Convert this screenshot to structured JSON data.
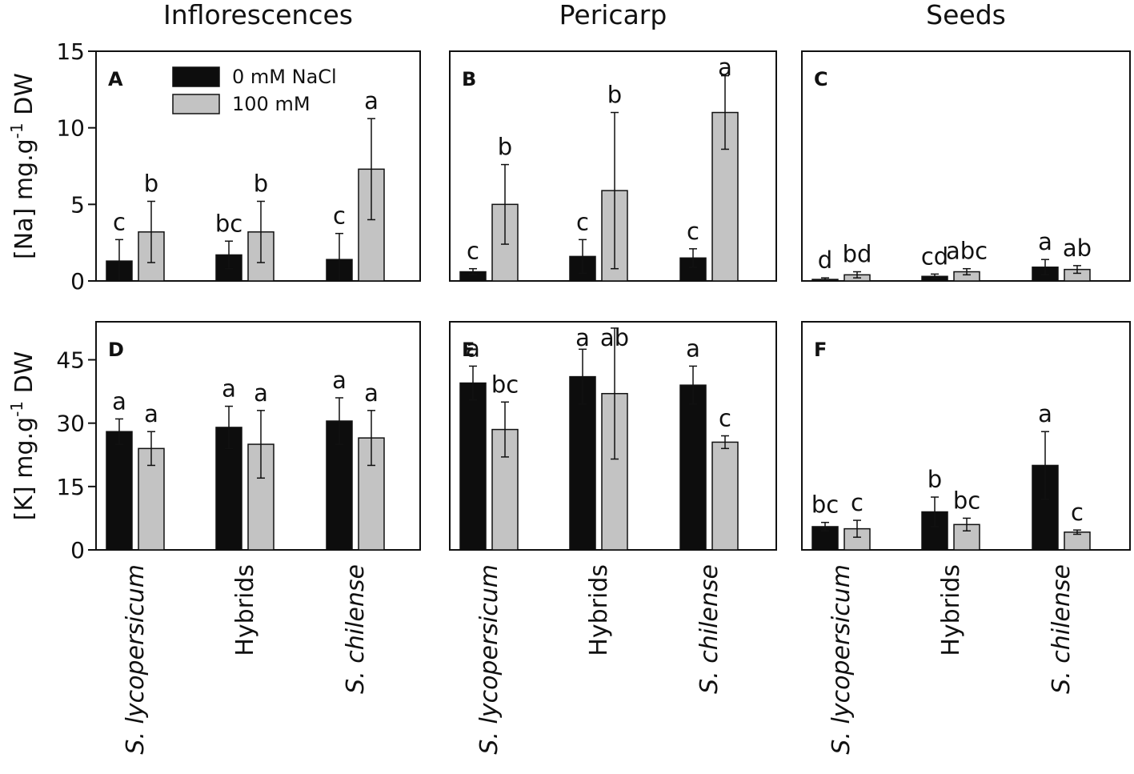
{
  "column_titles": [
    "Inflorescences",
    "Pericarp",
    "Seeds"
  ],
  "legend": [
    "0 mM NaCl",
    "100 mM"
  ],
  "colors": {
    "control": "#0d0d0d",
    "salt": "#c3c3c3",
    "frame": "#111111"
  },
  "categories": [
    {
      "label": "S. lycopersicum",
      "italic": true
    },
    {
      "label": "Hybrids",
      "italic": false
    },
    {
      "label": "S. chilense",
      "italic": true
    }
  ],
  "rows": [
    {
      "ylabel_main": "[Na] mg.g",
      "ylabel_sup": "-1",
      "ylabel_tail": " DW",
      "yticks": [
        "0",
        "5",
        "10",
        "15"
      ]
    },
    {
      "ylabel_main": "[K] mg.g",
      "ylabel_sup": "-1",
      "ylabel_tail": " DW",
      "yticks": [
        "0",
        "15",
        "30",
        "45"
      ]
    }
  ],
  "chart_data": [
    {
      "panel": "A",
      "type": "bar",
      "title": "Inflorescences",
      "ylabel": "[Na] mg.g-1 DW",
      "ylim": [
        0,
        15
      ],
      "yticks": [
        0,
        5,
        10,
        15
      ],
      "categories": [
        "S. lycopersicum",
        "Hybrids",
        "S. chilense"
      ],
      "series": [
        {
          "name": "0 mM NaCl",
          "values": [
            1.3,
            1.7,
            1.4
          ],
          "errors": [
            1.4,
            0.9,
            1.7
          ],
          "letters": [
            "c",
            "bc",
            "c"
          ]
        },
        {
          "name": "100 mM",
          "values": [
            3.2,
            3.2,
            7.3
          ],
          "errors": [
            2.0,
            2.0,
            3.3
          ],
          "letters": [
            "b",
            "b",
            "a"
          ]
        }
      ]
    },
    {
      "panel": "B",
      "type": "bar",
      "title": "Pericarp",
      "ylabel": "[Na] mg.g-1 DW",
      "ylim": [
        0,
        15
      ],
      "yticks": [
        0,
        5,
        10,
        15
      ],
      "categories": [
        "S. lycopersicum",
        "Hybrids",
        "S. chilense"
      ],
      "series": [
        {
          "name": "0 mM NaCl",
          "values": [
            0.6,
            1.6,
            1.5
          ],
          "errors": [
            0.2,
            1.1,
            0.6
          ],
          "letters": [
            "c",
            "c",
            "c"
          ]
        },
        {
          "name": "100 mM",
          "values": [
            5.0,
            5.9,
            11.0
          ],
          "errors": [
            2.6,
            5.1,
            2.4
          ],
          "letters": [
            "b",
            "b",
            "a"
          ]
        }
      ]
    },
    {
      "panel": "C",
      "type": "bar",
      "title": "Seeds",
      "ylabel": "[Na] mg.g-1 DW",
      "ylim": [
        0,
        15
      ],
      "yticks": [
        0,
        5,
        10,
        15
      ],
      "categories": [
        "S. lycopersicum",
        "Hybrids",
        "S. chilense"
      ],
      "series": [
        {
          "name": "0 mM NaCl",
          "values": [
            0.1,
            0.3,
            0.9
          ],
          "errors": [
            0.1,
            0.15,
            0.5
          ],
          "letters": [
            "d",
            "cd",
            "a"
          ]
        },
        {
          "name": "100 mM",
          "values": [
            0.4,
            0.6,
            0.75
          ],
          "errors": [
            0.2,
            0.2,
            0.25
          ],
          "letters": [
            "bd",
            "abc",
            "ab"
          ]
        }
      ]
    },
    {
      "panel": "D",
      "type": "bar",
      "title": "Inflorescences",
      "ylabel": "[K] mg.g-1 DW",
      "ylim": [
        0,
        54
      ],
      "yticks": [
        0,
        15,
        30,
        45
      ],
      "categories": [
        "S. lycopersicum",
        "Hybrids",
        "S. chilense"
      ],
      "series": [
        {
          "name": "0 mM NaCl",
          "values": [
            28,
            29,
            30.5
          ],
          "errors": [
            3,
            5,
            5.5
          ],
          "letters": [
            "a",
            "a",
            "a"
          ]
        },
        {
          "name": "100 mM",
          "values": [
            24,
            25,
            26.5
          ],
          "errors": [
            4,
            8,
            6.5
          ],
          "letters": [
            "a",
            "a",
            "a"
          ]
        }
      ]
    },
    {
      "panel": "E",
      "type": "bar",
      "title": "Pericarp",
      "ylabel": "[K] mg.g-1 DW",
      "ylim": [
        0,
        54
      ],
      "yticks": [
        0,
        15,
        30,
        45
      ],
      "categories": [
        "S. lycopersicum",
        "Hybrids",
        "S. chilense"
      ],
      "series": [
        {
          "name": "0 mM NaCl",
          "values": [
            39.5,
            41,
            39
          ],
          "errors": [
            4,
            6.5,
            4.5
          ],
          "letters": [
            "a",
            "a",
            "a"
          ]
        },
        {
          "name": "100 mM",
          "values": [
            28.5,
            37,
            25.5
          ],
          "errors": [
            6.5,
            15.5,
            1.5
          ],
          "letters": [
            "bc",
            "ab",
            "c"
          ]
        }
      ]
    },
    {
      "panel": "F",
      "type": "bar",
      "title": "Seeds",
      "ylabel": "[K] mg.g-1 DW",
      "ylim": [
        0,
        54
      ],
      "yticks": [
        0,
        15,
        30,
        45
      ],
      "categories": [
        "S. lycopersicum",
        "Hybrids",
        "S. chilense"
      ],
      "series": [
        {
          "name": "0 mM NaCl",
          "values": [
            5.5,
            9,
            20
          ],
          "errors": [
            1,
            3.5,
            8
          ],
          "letters": [
            "bc",
            "b",
            "a"
          ]
        },
        {
          "name": "100 mM",
          "values": [
            5,
            6,
            4.2
          ],
          "errors": [
            2,
            1.5,
            0.5
          ],
          "letters": [
            "c",
            "bc",
            "c"
          ]
        }
      ]
    }
  ]
}
